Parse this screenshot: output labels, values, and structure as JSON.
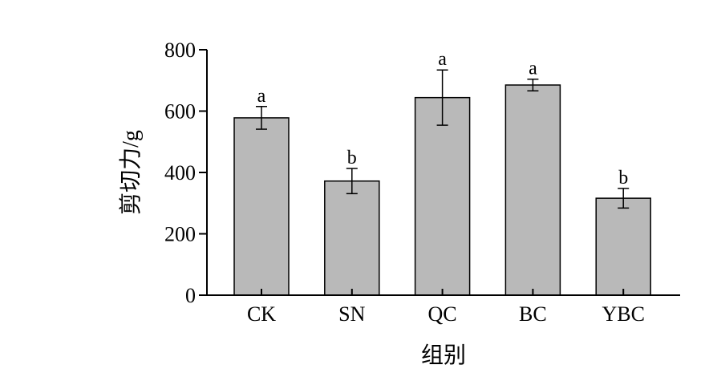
{
  "chart_data": {
    "type": "bar",
    "xlabel": "组别",
    "ylabel": "剪切力/g",
    "categories": [
      "CK",
      "SN",
      "QC",
      "BC",
      "YBC"
    ],
    "values": [
      578,
      372,
      644,
      685,
      316
    ],
    "errors": [
      37,
      41,
      90,
      19,
      32
    ],
    "significance": [
      "a",
      "b",
      "a",
      "a",
      "b"
    ],
    "ylim": [
      0,
      800
    ],
    "yticks": [
      0,
      200,
      400,
      600,
      800
    ],
    "bar_color": "#b9b9b9",
    "grid": false,
    "legend": "none"
  }
}
